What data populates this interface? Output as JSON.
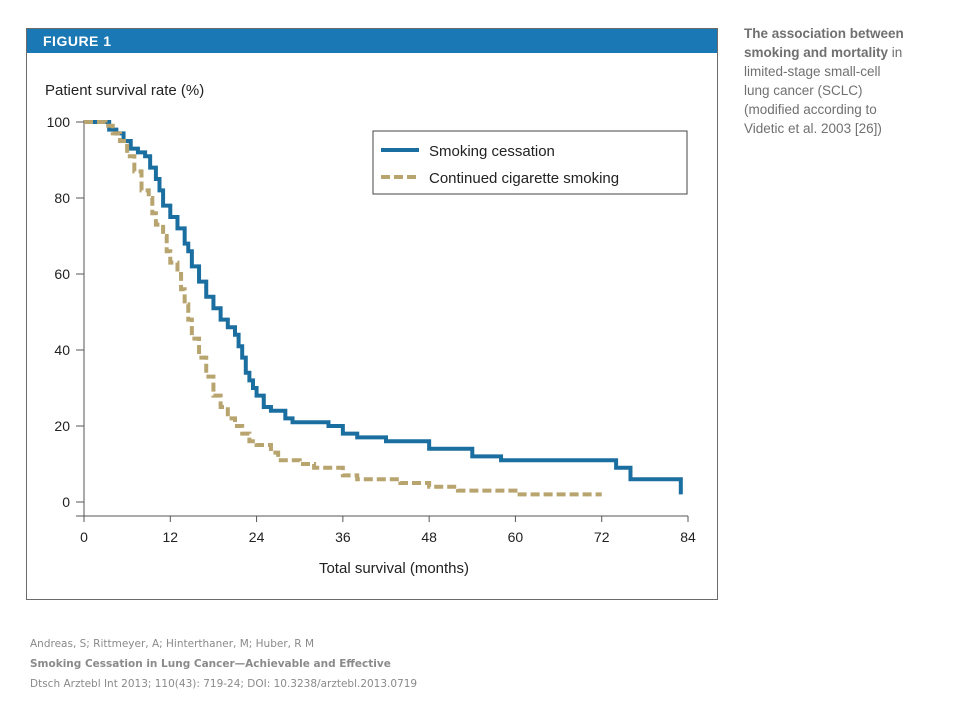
{
  "figure_label": "FIGURE 1",
  "caption": {
    "bold": "The association between smoking and mortality",
    "rest": " in limited-stage small-cell lung cancer (SCLC) (modified according to Videtic et al. 2003 [26])"
  },
  "footer": {
    "authors": "Andreas, S; Rittmeyer, A; Hinterthaner, M; Huber, R M",
    "title": "Smoking Cessation in Lung Cancer—Achievable and Effective",
    "citation": "Dtsch Arztebl Int 2013; 110(43): 719-24; DOI: 10.3238/arztebl.2013.0719"
  },
  "chart_data": {
    "type": "line",
    "subtype": "step",
    "ylabel": "Patient survival rate (%)",
    "xlabel": "Total survival (months)",
    "xlim": [
      0,
      84
    ],
    "ylim": [
      0,
      100
    ],
    "xticks": [
      0,
      12,
      24,
      36,
      48,
      60,
      72,
      84
    ],
    "yticks": [
      0,
      20,
      40,
      60,
      80,
      100
    ],
    "grid": false,
    "legend_position": "top-right",
    "series": [
      {
        "name": "Smoking cessation",
        "color": "#1b6fa0",
        "style": "solid",
        "x": [
          0,
          3.5,
          4.5,
          5.5,
          6.5,
          7.5,
          8.5,
          9.2,
          10,
          10.5,
          11,
          12,
          13,
          14,
          14.5,
          15,
          16,
          17,
          18,
          19,
          20,
          21,
          21.5,
          22,
          22.5,
          23,
          23.5,
          24,
          25,
          26,
          28,
          29,
          34,
          36,
          38,
          42,
          48,
          54,
          58,
          74,
          76,
          83
        ],
        "y": [
          100,
          98,
          97,
          95,
          93,
          92,
          91,
          88,
          85,
          82,
          78,
          75,
          72,
          68,
          66,
          62,
          58,
          54,
          51,
          48,
          46,
          44,
          41,
          38,
          34,
          32,
          30,
          28,
          25,
          24,
          22,
          21,
          20,
          18,
          17,
          16,
          14,
          12,
          11,
          9,
          6,
          2
        ]
      },
      {
        "name": "Continued cigarette smoking",
        "color": "#b8a46e",
        "style": "dashed",
        "x": [
          0,
          3,
          4,
          5,
          6,
          7,
          8,
          9,
          9.5,
          10,
          11,
          11.5,
          12,
          13,
          13.5,
          14,
          14.5,
          15,
          16,
          17,
          18,
          19,
          20,
          21,
          22,
          23,
          24,
          26,
          27,
          30,
          32,
          36,
          38,
          44,
          48,
          52,
          60,
          72
        ],
        "y": [
          100,
          99,
          97,
          95,
          91,
          87,
          82,
          80,
          76,
          73,
          70,
          66,
          63,
          60,
          56,
          52,
          48,
          43,
          38,
          33,
          28,
          25,
          22,
          20,
          18,
          16,
          15,
          13,
          11,
          10,
          9,
          7,
          6,
          5,
          4,
          3,
          2,
          2
        ]
      }
    ]
  }
}
